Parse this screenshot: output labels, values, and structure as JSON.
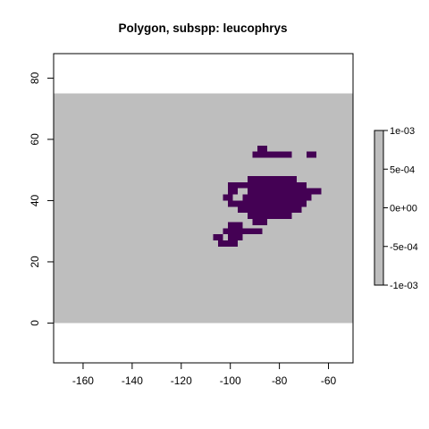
{
  "chart_data": {
    "type": "heatmap",
    "title": "Polygon, subspp: leucophrys",
    "xlabel": "",
    "ylabel": "",
    "xlim": [
      -172,
      -50
    ],
    "ylim": [
      -13,
      88
    ],
    "x_ticks": [
      -160,
      -140,
      -120,
      -100,
      -80,
      -60
    ],
    "y_ticks": [
      0,
      20,
      40,
      60,
      80
    ],
    "x_tick_labels": [
      "-160",
      "-140",
      "-120",
      "-100",
      "-80",
      "-60"
    ],
    "y_tick_labels": [
      "0",
      "20",
      "40",
      "60",
      "80"
    ],
    "raster_extent": {
      "xmin": -172,
      "xmax": -50,
      "ymin": 0,
      "ymax": 75
    },
    "cell_size": 2,
    "background_value": 0,
    "background_color": "#bebebe",
    "presence_color": "#440154",
    "presence_rows": [
      {
        "y": 57,
        "x0": -88,
        "x1": -86
      },
      {
        "y": 55,
        "x0": -90,
        "x1": -86
      },
      {
        "y": 55,
        "x0": -84,
        "x1": -82
      },
      {
        "y": 55,
        "x0": -80,
        "x1": -76
      },
      {
        "y": 55,
        "x0": -68,
        "x1": -66
      },
      {
        "y": 47,
        "x0": -92,
        "x1": -74
      },
      {
        "y": 45,
        "x0": -100,
        "x1": -96
      },
      {
        "y": 45,
        "x0": -94,
        "x1": -70
      },
      {
        "y": 43,
        "x0": -100,
        "x1": -98
      },
      {
        "y": 43,
        "x0": -92,
        "x1": -64
      },
      {
        "y": 41,
        "x0": -102,
        "x1": -100
      },
      {
        "y": 41,
        "x0": -94,
        "x1": -68
      },
      {
        "y": 39,
        "x0": -100,
        "x1": -70
      },
      {
        "y": 37,
        "x0": -96,
        "x1": -72
      },
      {
        "y": 35,
        "x0": -92,
        "x1": -76
      },
      {
        "y": 33,
        "x0": -90,
        "x1": -86
      },
      {
        "y": 32,
        "x0": -100,
        "x1": -96
      },
      {
        "y": 30,
        "x0": -102,
        "x1": -94
      },
      {
        "y": 30,
        "x0": -92,
        "x1": -88
      },
      {
        "y": 28,
        "x0": -106,
        "x1": -104
      },
      {
        "y": 28,
        "x0": -100,
        "x1": -96
      },
      {
        "y": 26,
        "x0": -104,
        "x1": -98
      }
    ],
    "legend": {
      "position": "right",
      "min": -0.001,
      "max": 0.001,
      "color": "#bebebe",
      "tick_values": [
        0.001,
        0.0005,
        0,
        -0.0005,
        -0.001
      ],
      "tick_labels": [
        "1e-03",
        "5e-04",
        "0e+00",
        "-5e-04",
        "-1e-03"
      ]
    },
    "grid": false
  }
}
